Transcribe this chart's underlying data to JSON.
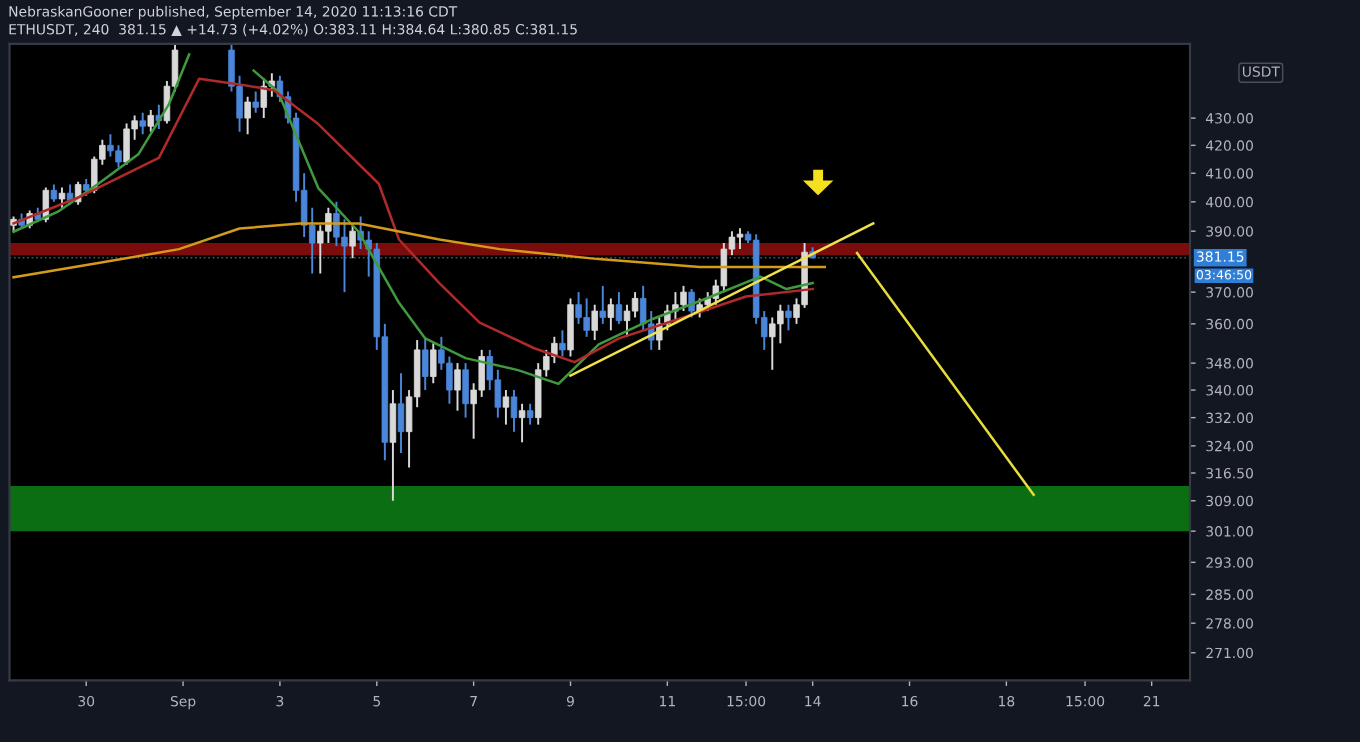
{
  "chart_data": {
    "type": "candlestick",
    "title": "NebraskanGooner published, September 14, 2020 11:13:16 CDT",
    "subtitle": "ETHUSDT, 240  381.15 ▲ +14.73 (+4.02%) O:383.11 H:384.64 L:380.85 C:381.15",
    "ylabel": "USDT",
    "log": true,
    "grid": false,
    "xlim": [
      "2020-08-28T10:00",
      "2020-09-21T19:00"
    ],
    "xticks": [
      {
        "value": "2020-08-30",
        "label": "30"
      },
      {
        "value": "2020-09-01",
        "label": "Sep"
      },
      {
        "value": "2020-09-03",
        "label": "3"
      },
      {
        "value": "2020-09-05",
        "label": "5"
      },
      {
        "value": "2020-09-07",
        "label": "7"
      },
      {
        "value": "2020-09-09",
        "label": "9"
      },
      {
        "value": "2020-09-11",
        "label": "11"
      },
      {
        "value": "2020-09-12T15:00",
        "label": "15:00"
      },
      {
        "value": "2020-09-14",
        "label": "14"
      },
      {
        "value": "2020-09-16",
        "label": "16"
      },
      {
        "value": "2020-09-18",
        "label": "18"
      },
      {
        "value": "2020-09-19T15:00",
        "label": "15:00"
      },
      {
        "value": "2020-09-21",
        "label": "21"
      }
    ],
    "ylim": [
      264.6,
      458.5
    ],
    "yticks": [
      {
        "value": 271,
        "label": "271.00"
      },
      {
        "value": 278,
        "label": "278.00"
      },
      {
        "value": 285,
        "label": "285.00"
      },
      {
        "value": 293,
        "label": "293.00"
      },
      {
        "value": 301,
        "label": "301.00"
      },
      {
        "value": 309,
        "label": "309.00"
      },
      {
        "value": 316.5,
        "label": "316.50"
      },
      {
        "value": 324,
        "label": "324.00"
      },
      {
        "value": 332,
        "label": "332.00"
      },
      {
        "value": 340,
        "label": "340.00"
      },
      {
        "value": 348,
        "label": "348.00"
      },
      {
        "value": 360,
        "label": "360.00"
      },
      {
        "value": 370,
        "label": "370.00"
      },
      {
        "value": 390,
        "label": "390.00"
      },
      {
        "value": 400,
        "label": "400.00"
      },
      {
        "value": 410,
        "label": "410.00"
      },
      {
        "value": 420,
        "label": "420.00"
      },
      {
        "value": 430,
        "label": "430.00"
      }
    ],
    "bands": [
      {
        "axis": "y",
        "from": 382,
        "to": 386,
        "color": "#7b0c0c"
      },
      {
        "axis": "y",
        "from": 301,
        "to": 313,
        "color": "#0b6e12"
      }
    ],
    "ref_lines": [
      {
        "axis": "y",
        "value": 381.15,
        "label": "381.15",
        "color": "#4a5468",
        "line_style": "dotted"
      }
    ],
    "annotations": [
      "03:46:50"
    ],
    "series": [
      {
        "color": "#d9d9d9",
        "x": [
          "2020-08-28T12:00",
          "2020-08-28T20:00",
          "2020-08-29T04:00",
          "2020-08-29T12:00",
          "2020-08-29T20:00",
          "2020-08-30T04:00",
          "2020-08-30T08:00",
          "2020-08-30T20:00",
          "2020-08-31T00:00",
          "2020-08-31T08:00",
          "2020-08-31T16:00",
          "2020-08-31T20:00",
          "2020-09-02T08:00",
          "2020-09-02T16:00",
          "2020-09-02T20:00",
          "2020-09-03T20:00",
          "2020-09-04T00:00",
          "2020-09-04T12:00",
          "2020-09-05T08:00",
          "2020-09-05T16:00",
          "2020-09-05T20:00",
          "2020-09-06T04:00",
          "2020-09-06T16:00",
          "2020-09-07T00:00",
          "2020-09-07T04:00",
          "2020-09-07T16:00",
          "2020-09-08T00:00",
          "2020-09-08T08:00",
          "2020-09-08T12:00",
          "2020-09-08T16:00",
          "2020-09-09T00:00",
          "2020-09-09T12:00",
          "2020-09-09T20:00",
          "2020-09-10T04:00",
          "2020-09-10T08:00",
          "2020-09-10T20:00",
          "2020-09-11T00:00",
          "2020-09-11T04:00",
          "2020-09-11T08:00",
          "2020-09-11T16:00",
          "2020-09-11T20:00",
          "2020-09-12T00:00",
          "2020-09-12T04:00",
          "2020-09-12T08:00",
          "2020-09-12T12:00",
          "2020-09-13T04:00",
          "2020-09-13T08:00",
          "2020-09-13T16:00",
          "2020-09-13T20:00"
        ],
        "ohlc": [
          [
            392,
            395,
            390,
            394
          ],
          [
            392,
            397,
            391,
            396
          ],
          [
            394,
            405,
            393,
            404
          ],
          [
            401,
            405,
            398,
            403
          ],
          [
            400,
            407,
            399,
            406
          ],
          [
            404,
            416,
            403,
            415
          ],
          [
            415,
            422,
            413,
            420
          ],
          [
            414,
            428,
            413,
            426
          ],
          [
            426,
            431,
            422,
            429
          ],
          [
            427,
            433,
            425,
            431
          ],
          [
            429,
            444,
            428,
            442
          ],
          [
            442,
            458,
            440,
            456
          ],
          [
            430,
            438,
            424,
            436
          ],
          [
            434,
            445,
            430,
            442
          ],
          [
            442,
            447,
            438,
            444
          ],
          [
            386,
            392,
            376,
            390
          ],
          [
            390,
            398,
            386,
            396
          ],
          [
            385,
            392,
            381,
            390
          ],
          [
            325,
            340,
            309,
            336
          ],
          [
            328,
            340,
            318,
            338
          ],
          [
            338,
            355,
            335,
            352
          ],
          [
            344,
            354,
            342,
            352
          ],
          [
            340,
            348,
            334,
            346
          ],
          [
            336,
            342,
            326,
            340
          ],
          [
            340,
            352,
            338,
            350
          ],
          [
            335,
            340,
            330,
            338
          ],
          [
            332,
            336,
            325,
            334
          ],
          [
            332,
            348,
            330,
            346
          ],
          [
            346,
            352,
            344,
            350
          ],
          [
            350,
            356,
            348,
            354
          ],
          [
            352,
            368,
            350,
            366
          ],
          [
            358,
            366,
            355,
            364
          ],
          [
            362,
            368,
            358,
            366
          ],
          [
            361,
            366,
            356,
            364
          ],
          [
            364,
            370,
            362,
            368
          ],
          [
            355,
            362,
            352,
            360
          ],
          [
            360,
            366,
            358,
            364
          ],
          [
            364,
            370,
            361,
            366
          ],
          [
            366,
            372,
            364,
            370
          ],
          [
            364,
            368,
            362,
            366
          ],
          [
            366,
            370,
            364,
            368
          ],
          [
            368,
            374,
            366,
            372
          ],
          [
            372,
            386,
            370,
            384
          ],
          [
            384,
            390,
            382,
            388
          ],
          [
            388,
            391,
            384,
            389
          ],
          [
            356,
            362,
            346,
            360
          ],
          [
            360,
            366,
            354,
            364
          ],
          [
            362,
            368,
            360,
            366
          ],
          [
            366,
            386,
            365,
            383
          ]
        ]
      },
      {
        "color": "#4a86d9",
        "x": [
          "2020-08-28T16:00",
          "2020-08-29T00:00",
          "2020-08-29T08:00",
          "2020-08-29T16:00",
          "2020-08-30T00:00",
          "2020-08-30T12:00",
          "2020-08-30T16:00",
          "2020-08-31T04:00",
          "2020-08-31T12:00",
          "2020-09-02T00:00",
          "2020-09-02T04:00",
          "2020-09-02T12:00",
          "2020-09-03T00:00",
          "2020-09-03T04:00",
          "2020-09-03T08:00",
          "2020-09-03T12:00",
          "2020-09-03T16:00",
          "2020-09-04T04:00",
          "2020-09-04T08:00",
          "2020-09-04T16:00",
          "2020-09-04T20:00",
          "2020-09-05T00:00",
          "2020-09-05T04:00",
          "2020-09-05T12:00",
          "2020-09-06T00:00",
          "2020-09-06T08:00",
          "2020-09-06T12:00",
          "2020-09-06T20:00",
          "2020-09-07T08:00",
          "2020-09-07T12:00",
          "2020-09-07T20:00",
          "2020-09-08T04:00",
          "2020-09-08T20:00",
          "2020-09-09T04:00",
          "2020-09-09T08:00",
          "2020-09-09T16:00",
          "2020-09-10T00:00",
          "2020-09-10T12:00",
          "2020-09-10T16:00",
          "2020-09-11T12:00",
          "2020-09-12T16:00",
          "2020-09-12T20:00",
          "2020-09-13T00:00",
          "2020-09-13T12:00",
          "2020-09-14T00:00"
        ],
        "ohlc": [
          [
            394,
            396,
            391,
            392
          ],
          [
            396,
            398,
            393,
            394
          ],
          [
            404,
            406,
            400,
            401
          ],
          [
            403,
            406,
            399,
            400
          ],
          [
            406,
            408,
            402,
            404
          ],
          [
            420,
            424,
            416,
            418
          ],
          [
            418,
            420,
            412,
            414
          ],
          [
            429,
            432,
            424,
            427
          ],
          [
            431,
            435,
            426,
            429
          ],
          [
            456,
            458,
            440,
            442
          ],
          [
            442,
            446,
            425,
            430
          ],
          [
            436,
            440,
            432,
            434
          ],
          [
            444,
            446,
            436,
            438
          ],
          [
            438,
            440,
            428,
            430
          ],
          [
            430,
            432,
            400,
            404
          ],
          [
            404,
            410,
            388,
            392
          ],
          [
            392,
            398,
            376,
            386
          ],
          [
            396,
            400,
            385,
            388
          ],
          [
            388,
            394,
            370,
            385
          ],
          [
            390,
            395,
            384,
            387
          ],
          [
            387,
            390,
            375,
            384
          ],
          [
            384,
            386,
            352,
            356
          ],
          [
            356,
            360,
            320,
            325
          ],
          [
            336,
            345,
            322,
            328
          ],
          [
            352,
            356,
            340,
            344
          ],
          [
            352,
            356,
            346,
            348
          ],
          [
            348,
            350,
            336,
            340
          ],
          [
            346,
            348,
            332,
            336
          ],
          [
            350,
            352,
            340,
            343
          ],
          [
            343,
            346,
            332,
            335
          ],
          [
            338,
            340,
            328,
            332
          ],
          [
            334,
            336,
            330,
            332
          ],
          [
            354,
            358,
            350,
            352
          ],
          [
            366,
            370,
            360,
            362
          ],
          [
            362,
            368,
            356,
            358
          ],
          [
            364,
            372,
            360,
            362
          ],
          [
            366,
            370,
            360,
            361
          ],
          [
            368,
            372,
            358,
            360
          ],
          [
            360,
            364,
            352,
            355
          ],
          [
            370,
            371,
            362,
            364
          ],
          [
            389,
            390,
            386,
            387
          ],
          [
            387,
            389,
            360,
            362
          ],
          [
            362,
            364,
            352,
            356
          ],
          [
            364,
            366,
            358,
            362
          ],
          [
            383.11,
            384.64,
            380.85,
            381.15
          ]
        ]
      },
      {
        "type": "line",
        "color": "#3f9a3f",
        "x": [
          "2020-08-28T12:00",
          "2020-08-29T10:00",
          "2020-08-30T06:00",
          "2020-08-31T02:00",
          "2020-08-31T17:00",
          "2020-09-01T03:00",
          "2020-09-01T20:00",
          "2020-09-02T11:00",
          "2020-09-02T23:00",
          "2020-09-03T19:00",
          "2020-09-04T15:00",
          "2020-09-05T11:00",
          "2020-09-06T00:00",
          "2020-09-06T20:00",
          "2020-09-07T22:00",
          "2020-09-08T18:00",
          "2020-09-09T14:00",
          "2020-09-10T17:00",
          "2020-09-11T19:00",
          "2020-09-12T22:00",
          "2020-09-13T11:00",
          "2020-09-14T00:00"
        ],
        "values": [
          389.8,
          396.6,
          406.3,
          416.9,
          435.2,
          454.3,
          null,
          448,
          440,
          404.8,
          389.8,
          366.6,
          355.5,
          349.5,
          345.9,
          341.8,
          353.7,
          361.6,
          367.9,
          375,
          371,
          372.9
        ]
      },
      {
        "type": "line",
        "color": "#b02a2a",
        "x": [
          "2020-08-28T12:00",
          "2020-08-29T20:00",
          "2020-08-31T12:00",
          "2020-09-01T08:00",
          "2020-09-02T04:00",
          "2020-09-02T21:00",
          "2020-09-03T19:00",
          "2020-09-05T01:00",
          "2020-09-05T11:00",
          "2020-09-06T07:00",
          "2020-09-07T03:00",
          "2020-09-08T06:00",
          "2020-09-09T02:00",
          "2020-09-10T00:00",
          "2020-09-11T06:00",
          "2020-09-12T15:00",
          "2020-09-14T00:00"
        ],
        "values": [
          392.6,
          401.5,
          415.5,
          444.9,
          442.7,
          440.5,
          427.8,
          406.3,
          387.2,
          372.9,
          360.4,
          352.5,
          348.3,
          355.5,
          361.6,
          368.6,
          371
        ]
      },
      {
        "type": "line",
        "color": "#d49a1a",
        "x": [
          "2020-08-28T12:00",
          "2020-08-30T06:00",
          "2020-08-31T22:00",
          "2020-09-02T04:00",
          "2020-09-03T10:00",
          "2020-09-04T15:00",
          "2020-09-06T07:00",
          "2020-09-07T13:00",
          "2020-09-09T14:00",
          "2020-09-11T16:00",
          "2020-09-14T06:00"
        ],
        "values": [
          374.8,
          379.4,
          384,
          390.9,
          392.6,
          392.6,
          387.2,
          384,
          380.7,
          378.1,
          378.1
        ]
      },
      {
        "type": "line",
        "color": "#f2e24a",
        "x": [
          "2020-09-09T00:00",
          "2020-09-15T06:00"
        ],
        "values": [
          344.3,
          392.6
        ]
      },
      {
        "type": "line",
        "color": "#e6dc3a",
        "x": [
          "2020-09-14T22:00",
          "2020-09-18T13:30"
        ],
        "values": [
          382.7,
          310.6
        ]
      }
    ]
  }
}
